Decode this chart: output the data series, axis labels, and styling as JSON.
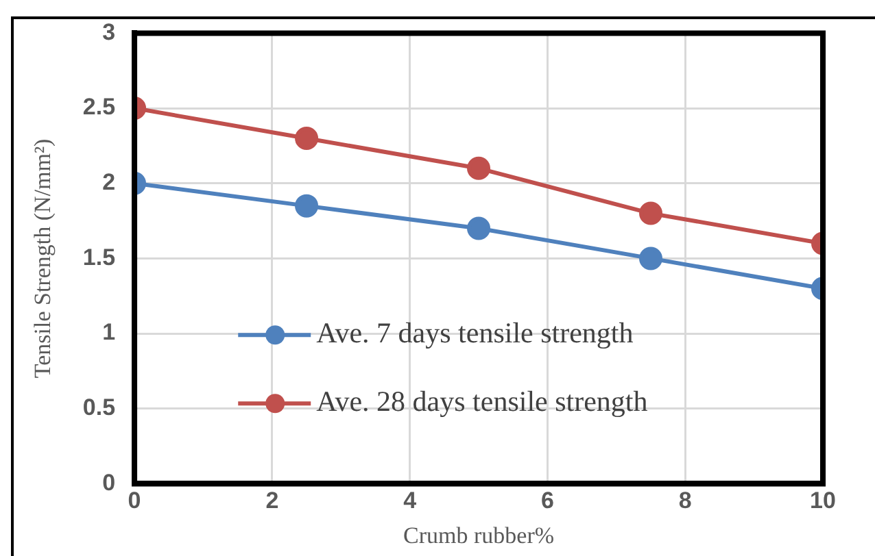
{
  "chart_data": {
    "type": "line",
    "xlabel": "Crumb rubber%",
    "ylabel": "Tensile Strength (N/mm²)",
    "x": [
      0,
      2.5,
      5,
      7.5,
      10
    ],
    "series": [
      {
        "name": "Ave. 7 days tensile strength",
        "color": "#4f81bd",
        "values": [
          2.0,
          1.85,
          1.7,
          1.5,
          1.3
        ]
      },
      {
        "name": "Ave. 28 days tensile strength",
        "color": "#c0504d",
        "values": [
          2.5,
          2.3,
          2.1,
          1.8,
          1.6
        ]
      }
    ],
    "xlim": [
      0,
      10
    ],
    "xticks": [
      0,
      2,
      4,
      6,
      8,
      10
    ],
    "ylim": [
      0,
      3
    ],
    "yticks": [
      0,
      0.5,
      1,
      1.5,
      2,
      2.5,
      3
    ],
    "grid": true,
    "legend": "bottom",
    "marker": "circle",
    "line_style": "solid"
  }
}
